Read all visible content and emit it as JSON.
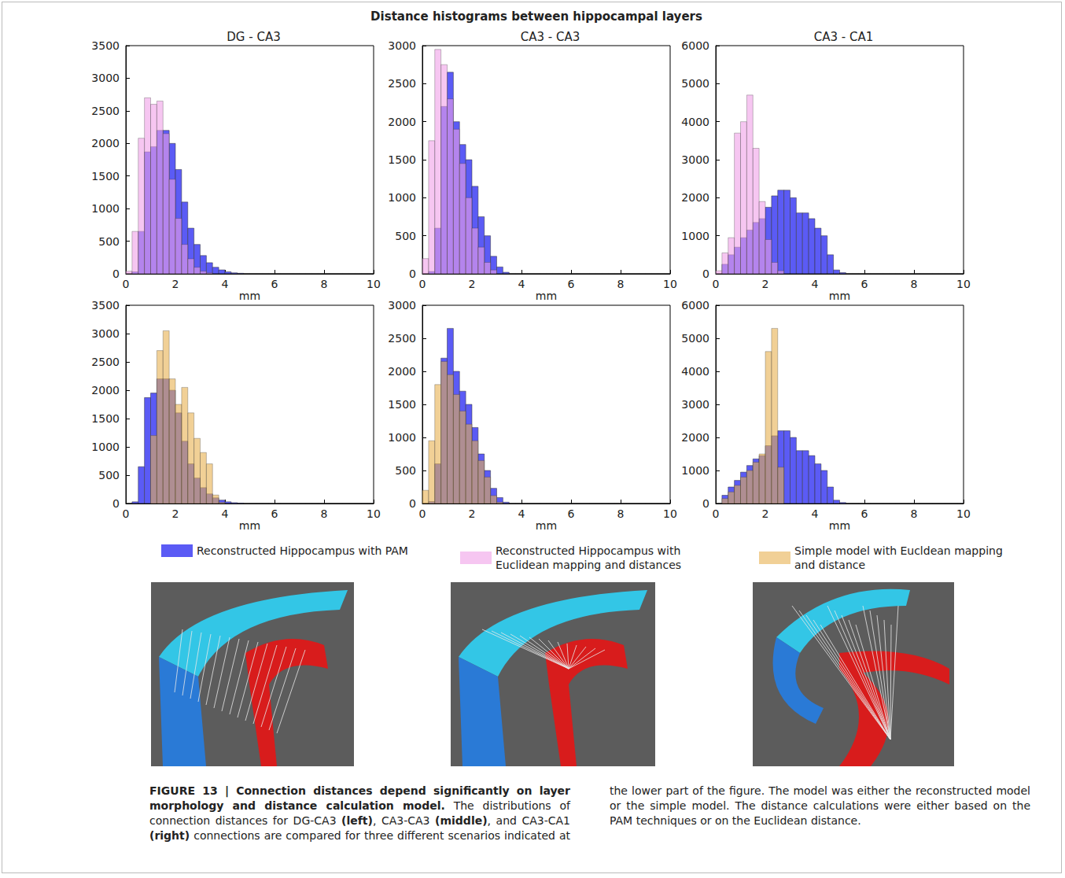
{
  "title": "Distance histograms between hippocampal layers",
  "chart_data": [
    {
      "type": "histogram",
      "title": "DG - CA3",
      "xlabel": "mm",
      "xlim": [
        0,
        10
      ],
      "xticks": [
        0,
        2,
        4,
        6,
        8,
        10
      ],
      "ylim": [
        0,
        3500
      ],
      "yticks": [
        0,
        500,
        1000,
        1500,
        2000,
        2500,
        3000,
        3500
      ],
      "grid": false,
      "bins": [
        0,
        0.25,
        0.5,
        0.75,
        1,
        1.25,
        1.5,
        1.75,
        2,
        2.25,
        2.5,
        2.75,
        3,
        3.25,
        3.5,
        3.75,
        4,
        4.25,
        4.5,
        4.75,
        5,
        5.25,
        5.5,
        5.75,
        6,
        6.25,
        6.5,
        6.75,
        7,
        7.25,
        7.5,
        7.75,
        8,
        8.25,
        8.5,
        8.75,
        9,
        9.25,
        9.5,
        9.75,
        10
      ],
      "series": [
        {
          "name": "Reconstructed Hippocampus with PAM",
          "color": "#5b5bf5",
          "values": [
            0,
            30,
            650,
            1870,
            1950,
            2200,
            2200,
            2000,
            1600,
            1100,
            700,
            450,
            280,
            170,
            100,
            60,
            30,
            15,
            8,
            0,
            0,
            0,
            0,
            0,
            0,
            0,
            0,
            0,
            0,
            0,
            0,
            0,
            0,
            0,
            0,
            0,
            0,
            0,
            0,
            0
          ]
        },
        {
          "name": "Reconstructed Hippocampus with Euclidean mapping and distances",
          "color": "#f0a0e8",
          "values": [
            40,
            650,
            2080,
            2700,
            2600,
            2650,
            2150,
            1450,
            850,
            450,
            230,
            100,
            40,
            15,
            0,
            0,
            0,
            0,
            0,
            0,
            0,
            0,
            0,
            0,
            0,
            0,
            0,
            0,
            0,
            0,
            0,
            0,
            0,
            0,
            0,
            0,
            0,
            0,
            0,
            0
          ]
        }
      ]
    },
    {
      "type": "histogram",
      "title": "CA3 - CA3",
      "xlabel": "mm",
      "xlim": [
        0,
        10
      ],
      "xticks": [
        0,
        2,
        4,
        6,
        8,
        10
      ],
      "ylim": [
        0,
        3000
      ],
      "yticks": [
        0,
        500,
        1000,
        1500,
        2000,
        2500,
        3000
      ],
      "grid": false,
      "bins": [
        0,
        0.25,
        0.5,
        0.75,
        1,
        1.25,
        1.5,
        1.75,
        2,
        2.25,
        2.5,
        2.75,
        3,
        3.25,
        3.5,
        3.75,
        4,
        4.25,
        4.5,
        4.75,
        5,
        5.25,
        5.5,
        5.75,
        6,
        6.25,
        6.5,
        6.75,
        7,
        7.25,
        7.5,
        7.75,
        8,
        8.25,
        8.5,
        8.75,
        9,
        9.25,
        9.5,
        9.75,
        10
      ],
      "series": [
        {
          "name": "Reconstructed Hippocampus with PAM",
          "color": "#5b5bf5",
          "values": [
            0,
            30,
            600,
            2200,
            2650,
            2000,
            1700,
            1500,
            1150,
            750,
            500,
            230,
            90,
            20,
            0,
            0,
            0,
            0,
            0,
            0,
            0,
            0,
            0,
            0,
            0,
            0,
            0,
            0,
            0,
            0,
            0,
            0,
            0,
            0,
            0,
            0,
            0,
            0,
            0,
            0
          ]
        },
        {
          "name": "Reconstructed Hippocampus with Euclidean mapping and distances",
          "color": "#f0a0e8",
          "values": [
            200,
            1750,
            2950,
            2750,
            2300,
            1900,
            1450,
            1000,
            600,
            350,
            150,
            50,
            0,
            0,
            0,
            0,
            0,
            0,
            0,
            0,
            0,
            0,
            0,
            0,
            0,
            0,
            0,
            0,
            0,
            0,
            0,
            0,
            0,
            0,
            0,
            0,
            0,
            0,
            0,
            0
          ]
        }
      ]
    },
    {
      "type": "histogram",
      "title": "CA3 - CA1",
      "xlabel": "mm",
      "xlim": [
        0,
        10
      ],
      "xticks": [
        0,
        2,
        4,
        6,
        8,
        10
      ],
      "ylim": [
        0,
        6000
      ],
      "yticks": [
        0,
        1000,
        2000,
        3000,
        4000,
        5000,
        6000
      ],
      "grid": false,
      "bins": [
        0,
        0.25,
        0.5,
        0.75,
        1,
        1.25,
        1.5,
        1.75,
        2,
        2.25,
        2.5,
        2.75,
        3,
        3.25,
        3.5,
        3.75,
        4,
        4.25,
        4.5,
        4.75,
        5,
        5.25,
        5.5,
        5.75,
        6,
        6.25,
        6.5,
        6.75,
        7,
        7.25,
        7.5,
        7.75,
        8,
        8.25,
        8.5,
        8.75,
        9,
        9.25,
        9.5,
        9.75,
        10
      ],
      "series": [
        {
          "name": "Reconstructed Hippocampus with PAM",
          "color": "#5b5bf5",
          "values": [
            0,
            250,
            500,
            700,
            950,
            1150,
            1350,
            1450,
            1750,
            2050,
            2200,
            2200,
            2000,
            1600,
            1600,
            1450,
            1200,
            1000,
            500,
            100,
            30,
            0,
            0,
            0,
            0,
            0,
            0,
            0,
            0,
            0,
            0,
            0,
            0,
            0,
            0,
            0,
            0,
            0,
            0,
            0
          ]
        },
        {
          "name": "Reconstructed Hippocampus with Euclidean mapping and distances",
          "color": "#f0a0e8",
          "values": [
            80,
            550,
            950,
            3700,
            4000,
            4700,
            3300,
            1900,
            900,
            300,
            80,
            0,
            0,
            0,
            0,
            0,
            0,
            0,
            0,
            0,
            0,
            0,
            0,
            0,
            0,
            0,
            0,
            0,
            0,
            0,
            0,
            0,
            0,
            0,
            0,
            0,
            0,
            0,
            0,
            0
          ]
        }
      ]
    },
    {
      "type": "histogram",
      "xlabel": "mm",
      "xlim": [
        0,
        10
      ],
      "xticks": [
        0,
        2,
        4,
        6,
        8,
        10
      ],
      "ylim": [
        0,
        3500
      ],
      "yticks": [
        0,
        500,
        1000,
        1500,
        2000,
        2500,
        3000,
        3500
      ],
      "grid": false,
      "bins": [
        0,
        0.25,
        0.5,
        0.75,
        1,
        1.25,
        1.5,
        1.75,
        2,
        2.25,
        2.5,
        2.75,
        3,
        3.25,
        3.5,
        3.75,
        4,
        4.25,
        4.5,
        4.75,
        5,
        5.25,
        5.5,
        5.75,
        6,
        6.25,
        6.5,
        6.75,
        7,
        7.25,
        7.5,
        7.75,
        8,
        8.25,
        8.5,
        8.75,
        9,
        9.25,
        9.5,
        9.75,
        10
      ],
      "series": [
        {
          "name": "Reconstructed Hippocampus with PAM",
          "color": "#5b5bf5",
          "values": [
            0,
            30,
            650,
            1870,
            1950,
            2200,
            2200,
            2000,
            1600,
            1100,
            700,
            450,
            280,
            170,
            100,
            60,
            30,
            15,
            8,
            0,
            0,
            0,
            0,
            0,
            0,
            0,
            0,
            0,
            0,
            0,
            0,
            0,
            0,
            0,
            0,
            0,
            0,
            0,
            0,
            0
          ]
        },
        {
          "name": "Simple model with Eucldean mapping and distance",
          "color": "#e8b050",
          "values": [
            0,
            0,
            0,
            0,
            1200,
            2700,
            3050,
            2200,
            1750,
            2050,
            1600,
            1150,
            900,
            700,
            150,
            20,
            0,
            0,
            0,
            0,
            0,
            0,
            0,
            0,
            0,
            0,
            0,
            0,
            0,
            0,
            0,
            0,
            0,
            0,
            0,
            0,
            0,
            0,
            0,
            0
          ]
        }
      ]
    },
    {
      "type": "histogram",
      "xlabel": "mm",
      "xlim": [
        0,
        10
      ],
      "xticks": [
        0,
        2,
        4,
        6,
        8,
        10
      ],
      "ylim": [
        0,
        3000
      ],
      "yticks": [
        0,
        500,
        1000,
        1500,
        2000,
        2500,
        3000
      ],
      "grid": false,
      "bins": [
        0,
        0.25,
        0.5,
        0.75,
        1,
        1.25,
        1.5,
        1.75,
        2,
        2.25,
        2.5,
        2.75,
        3,
        3.25,
        3.5,
        3.75,
        4,
        4.25,
        4.5,
        4.75,
        5,
        5.25,
        5.5,
        5.75,
        6,
        6.25,
        6.5,
        6.75,
        7,
        7.25,
        7.5,
        7.75,
        8,
        8.25,
        8.5,
        8.75,
        9,
        9.25,
        9.5,
        9.75,
        10
      ],
      "series": [
        {
          "name": "Reconstructed Hippocampus with PAM",
          "color": "#5b5bf5",
          "values": [
            0,
            30,
            600,
            2200,
            2650,
            2000,
            1700,
            1500,
            1150,
            750,
            500,
            230,
            90,
            20,
            0,
            0,
            0,
            0,
            0,
            0,
            0,
            0,
            0,
            0,
            0,
            0,
            0,
            0,
            0,
            0,
            0,
            0,
            0,
            0,
            0,
            0,
            0,
            0,
            0,
            0
          ]
        },
        {
          "name": "Simple model with Eucldean mapping and distance",
          "color": "#e8b050",
          "values": [
            200,
            950,
            1800,
            2150,
            1950,
            1650,
            1400,
            1200,
            950,
            650,
            400,
            120,
            20,
            0,
            0,
            0,
            0,
            0,
            0,
            0,
            0,
            0,
            0,
            0,
            0,
            0,
            0,
            0,
            0,
            0,
            0,
            0,
            0,
            0,
            0,
            0,
            0,
            0,
            0,
            0
          ]
        }
      ]
    },
    {
      "type": "histogram",
      "xlabel": "mm",
      "xlim": [
        0,
        10
      ],
      "xticks": [
        0,
        2,
        4,
        6,
        8,
        10
      ],
      "ylim": [
        0,
        6000
      ],
      "yticks": [
        0,
        1000,
        2000,
        3000,
        4000,
        5000,
        6000
      ],
      "grid": false,
      "bins": [
        0,
        0.25,
        0.5,
        0.75,
        1,
        1.25,
        1.5,
        1.75,
        2,
        2.25,
        2.5,
        2.75,
        3,
        3.25,
        3.5,
        3.75,
        4,
        4.25,
        4.5,
        4.75,
        5,
        5.25,
        5.5,
        5.75,
        6,
        6.25,
        6.5,
        6.75,
        7,
        7.25,
        7.5,
        7.75,
        8,
        8.25,
        8.5,
        8.75,
        9,
        9.25,
        9.5,
        9.75,
        10
      ],
      "series": [
        {
          "name": "Reconstructed Hippocampus with PAM",
          "color": "#5b5bf5",
          "values": [
            0,
            250,
            500,
            700,
            950,
            1150,
            1350,
            1450,
            1750,
            2050,
            2200,
            2200,
            2000,
            1600,
            1600,
            1450,
            1200,
            1000,
            500,
            100,
            30,
            0,
            0,
            0,
            0,
            0,
            0,
            0,
            0,
            0,
            0,
            0,
            0,
            0,
            0,
            0,
            0,
            0,
            0,
            0
          ]
        },
        {
          "name": "Simple model with Eucldean mapping and distance",
          "color": "#e8b050",
          "values": [
            0,
            150,
            350,
            550,
            800,
            1000,
            1250,
            1500,
            4600,
            5300,
            1100,
            0,
            0,
            0,
            0,
            0,
            0,
            0,
            0,
            0,
            0,
            0,
            0,
            0,
            0,
            0,
            0,
            0,
            0,
            0,
            0,
            0,
            0,
            0,
            0,
            0,
            0,
            0,
            0,
            0
          ]
        }
      ]
    }
  ],
  "caption": [
    {
      "text": "FIGURE 13 | Connection distances depend significantly on layer morphology and distance calculation model.",
      "bold": true
    },
    {
      "text": " The distributions of connection distances for DG-CA3 ",
      "bold": false
    },
    {
      "text": "(left)",
      "bold": true
    },
    {
      "text": ", CA3-CA3 ",
      "bold": false
    },
    {
      "text": "(middle)",
      "bold": true
    },
    {
      "text": ", and CA3-CA1 ",
      "bold": false
    },
    {
      "text": "(right)",
      "bold": true
    },
    {
      "text": " connections are compared for three different scenarios indicated at the lower part of the figure. The model was either the reconstructed model or the simple model. The distance calculations were either based on the PAM techniques or on the Euclidean distance.",
      "bold": false
    }
  ]
}
